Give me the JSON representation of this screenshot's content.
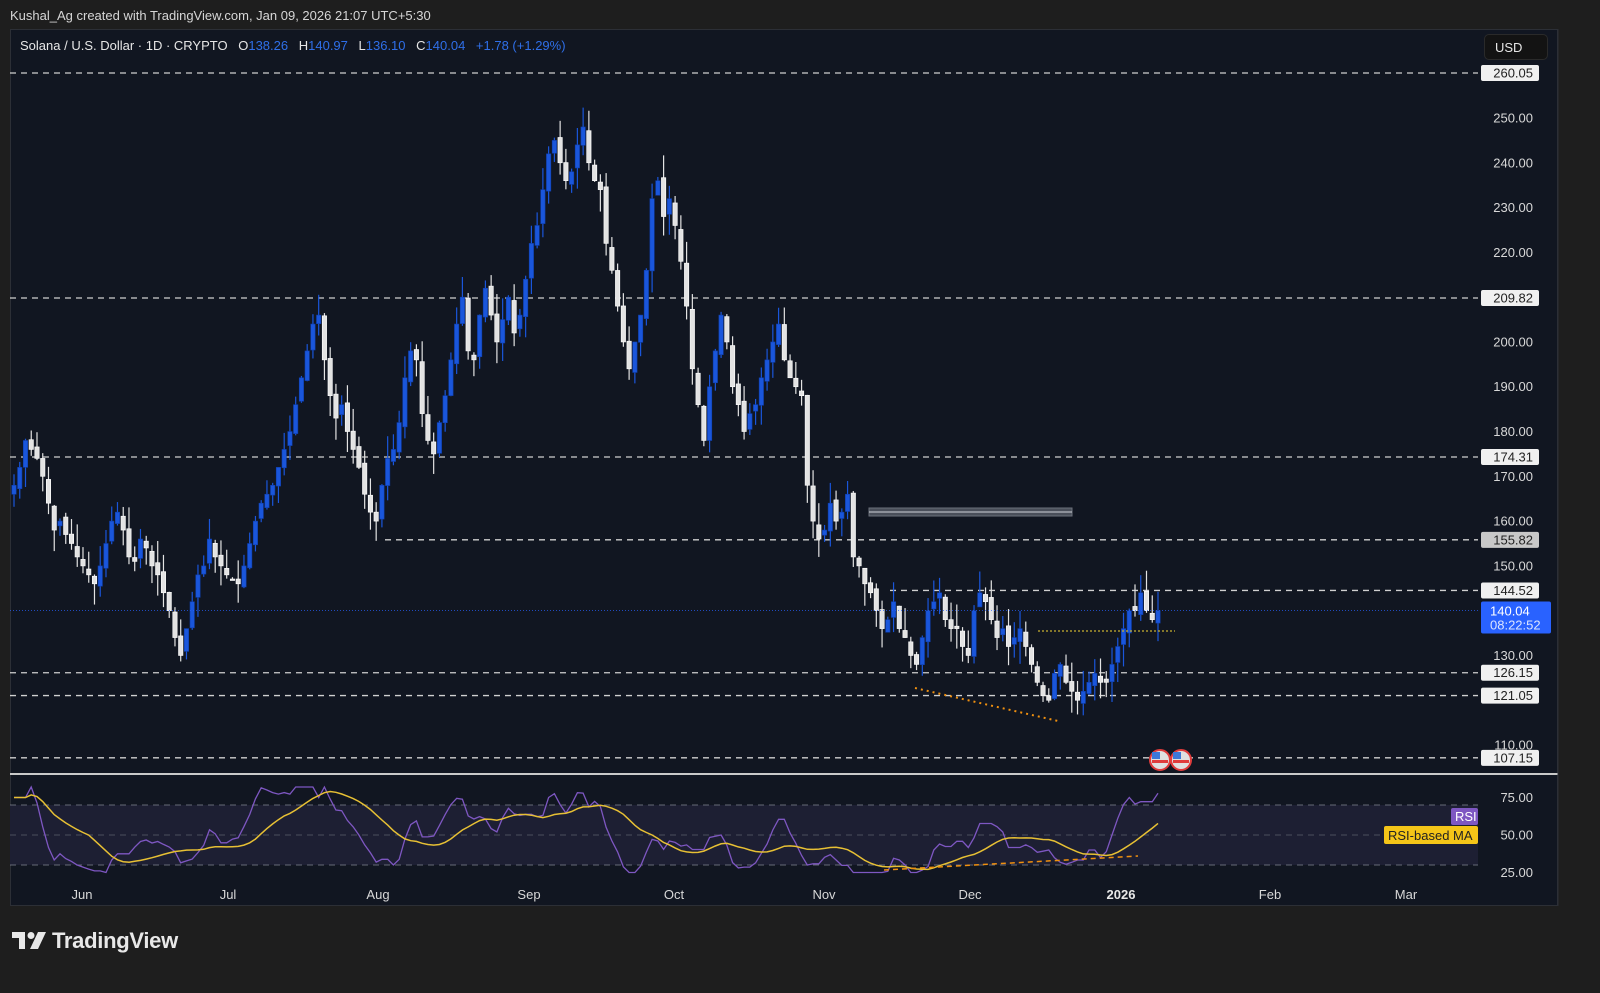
{
  "credit": "Kushal_Ag created with TradingView.com, Jan 09, 2026 21:07 UTC+5:30",
  "legend": {
    "symbol": "Solana / U.S. Dollar · 1D · CRYPTO",
    "open_label": "O",
    "open": "138.26",
    "high_label": "H",
    "high": "140.97",
    "low_label": "L",
    "low": "136.10",
    "close_label": "C",
    "close": "140.04",
    "change": "+1.78 (+1.29%)"
  },
  "currency_button": "USD",
  "brand": "TradingView",
  "colors": {
    "up": "#1a56db",
    "down": "#e3e3e3",
    "rsi": "#7e57c2",
    "rsi_ma": "#e7c034",
    "accent": "#2962ff",
    "trend": "#f0900f"
  },
  "price_axis": {
    "ticks": [
      "250.00",
      "240.00",
      "230.00",
      "220.00",
      "200.00",
      "190.00",
      "180.00",
      "170.00",
      "160.00",
      "150.00",
      "130.00",
      "110.00"
    ],
    "level_labels": [
      "260.05",
      "209.82",
      "174.31",
      "155.82",
      "144.52",
      "126.15",
      "121.05",
      "107.15"
    ],
    "current_price": "140.04",
    "countdown": "08:22:52"
  },
  "rsi_axis": {
    "ticks": [
      "75.00",
      "50.00",
      "25.00"
    ],
    "rsi_label": "RSI",
    "ma_label": "RSI-based MA"
  },
  "time_axis": {
    "labels": [
      "Jun",
      "Jul",
      "Aug",
      "Sep",
      "Oct",
      "Nov",
      "Dec",
      "2026",
      "Feb",
      "Mar"
    ]
  },
  "chart_data": {
    "type": "candlestick",
    "title": "Solana / U.S. Dollar · 1D · CRYPTO",
    "xlabel": "",
    "ylabel": "USD",
    "ylim": [
      105,
      262
    ],
    "x_ticks": [
      "Jun",
      "Jul",
      "Aug",
      "Sep",
      "Oct",
      "Nov",
      "Dec",
      "2026",
      "Feb",
      "Mar"
    ],
    "horizontal_levels": [
      260.05,
      209.82,
      174.31,
      155.82,
      144.52,
      126.15,
      121.05,
      107.15
    ],
    "last_ohlc": {
      "open": 138.26,
      "high": 140.97,
      "low": 136.1,
      "close": 140.04,
      "change": 1.78,
      "change_pct": 1.29
    },
    "closes_approx": [
      168,
      172,
      178,
      176,
      174,
      170,
      164,
      158,
      160,
      157,
      155,
      152,
      150,
      148,
      146,
      150,
      155,
      160,
      162,
      158,
      152,
      151,
      156,
      154,
      150,
      148,
      144,
      140,
      134,
      130,
      136,
      142,
      148,
      150,
      156,
      152,
      150,
      148,
      147,
      146,
      150,
      155,
      160,
      164,
      166,
      168,
      172,
      176,
      180,
      186,
      192,
      198,
      204,
      206,
      196,
      188,
      183,
      186,
      180,
      176,
      172,
      166,
      162,
      160,
      168,
      174,
      176,
      182,
      192,
      198,
      196,
      184,
      178,
      175,
      182,
      188,
      196,
      204,
      210,
      198,
      196,
      206,
      212,
      206,
      200,
      205,
      210,
      202,
      206,
      214,
      222,
      226,
      234,
      242,
      245,
      240,
      236,
      238,
      244,
      248,
      240,
      236,
      234,
      222,
      216,
      208,
      200,
      194,
      200,
      206,
      216,
      232,
      236,
      228,
      232,
      226,
      218,
      208,
      194,
      186,
      178,
      190,
      198,
      206,
      200,
      190,
      186,
      180,
      184,
      186,
      192,
      196,
      200,
      204,
      196,
      192,
      190,
      188,
      168,
      160,
      156,
      158,
      164,
      160,
      162,
      166,
      152,
      150,
      146,
      144,
      140,
      136,
      138,
      142,
      136,
      134,
      130,
      128,
      134,
      140,
      142,
      144,
      138,
      136,
      136,
      132,
      130,
      140,
      144,
      142,
      138,
      134,
      136,
      132,
      134,
      136,
      132,
      128,
      124,
      121,
      120,
      126,
      128,
      124,
      122,
      120,
      122,
      124,
      126,
      124,
      124,
      128,
      132,
      136,
      140,
      140,
      144,
      140,
      138,
      140
    ]
  },
  "rsi_data": {
    "overbought": 70,
    "mid": 50,
    "oversold": 30,
    "annotation": "RSI bullish divergence (dashed trendline on lows)",
    "price_annotation": "Descending dotted trendline on price lows; dotted horizontal line at ~136"
  }
}
